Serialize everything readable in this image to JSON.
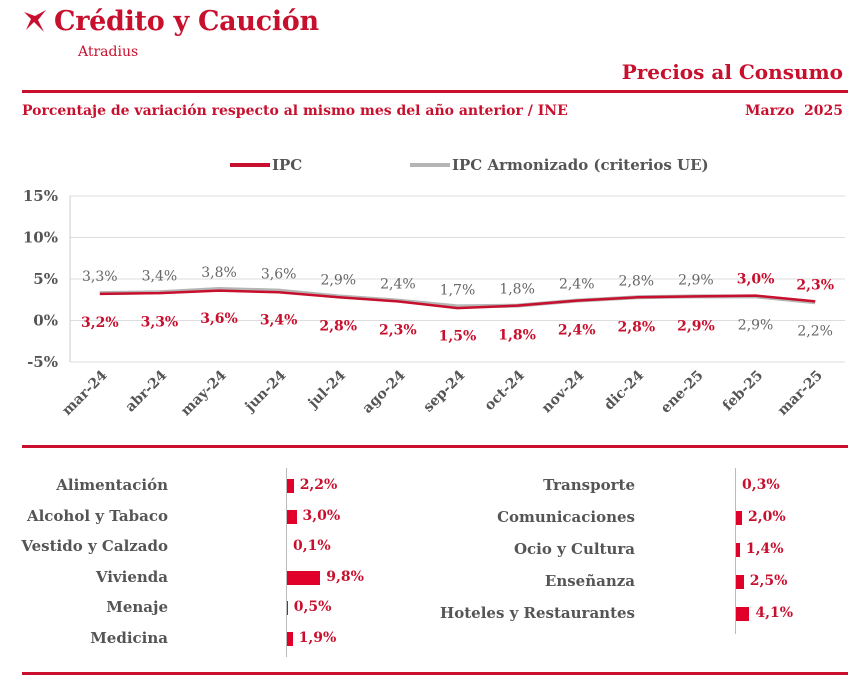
{
  "brand": {
    "name": "Crédito y Caución",
    "sub": "Atradius",
    "color": "#c8102e"
  },
  "page_title": "Precios al Consumo",
  "subtitle": "Porcentaje de variación respecto al mismo mes del año anterior / INE",
  "period": "Marzo  2025",
  "chart_data": {
    "type": "line",
    "title": "",
    "xlabel": "",
    "ylabel": "",
    "ylim": [
      -5,
      15
    ],
    "yticks": [
      "15%",
      "10%",
      "5%",
      "0%",
      "-5%"
    ],
    "ytick_values": [
      15,
      10,
      5,
      0,
      -5
    ],
    "categories": [
      "mar-24",
      "abr-24",
      "may-24",
      "jun-24",
      "jul-24",
      "ago-24",
      "sep-24",
      "oct-24",
      "nov-24",
      "dic-24",
      "ene-25",
      "feb-25",
      "mar-25"
    ],
    "series": [
      {
        "name": "IPC",
        "color": "#c8102e",
        "values": [
          3.2,
          3.3,
          3.6,
          3.4,
          2.8,
          2.3,
          1.5,
          1.8,
          2.4,
          2.8,
          2.9,
          3.0,
          2.3
        ],
        "labels": [
          "3,2%",
          "3,3%",
          "3,6%",
          "3,4%",
          "2,8%",
          "2,3%",
          "1,5%",
          "1,8%",
          "2,4%",
          "2,8%",
          "2,9%",
          "3,0%",
          "2,3%"
        ]
      },
      {
        "name": "IPC Armonizado (criterios UE)",
        "color": "#b5b5b5",
        "values": [
          3.3,
          3.4,
          3.8,
          3.6,
          2.9,
          2.4,
          1.7,
          1.8,
          2.4,
          2.8,
          2.9,
          2.9,
          2.2
        ],
        "labels": [
          "3,3%",
          "3,4%",
          "3,8%",
          "3,6%",
          "2,9%",
          "2,4%",
          "1,7%",
          "1,8%",
          "2,4%",
          "2,8%",
          "2,9%",
          "2,9%",
          "2,2%"
        ]
      }
    ],
    "legend": "top"
  },
  "categories_left": [
    {
      "name": "Alimentación",
      "value": 2.2,
      "label": "2,2%"
    },
    {
      "name": "Alcohol y Tabaco",
      "value": 3.0,
      "label": "3,0%"
    },
    {
      "name": "Vestido y Calzado",
      "value": 0.1,
      "label": "0,1%"
    },
    {
      "name": "Vivienda",
      "value": 9.8,
      "label": "9,8%"
    },
    {
      "name": "Menaje ",
      "value": 0.5,
      "label": "0,5%"
    },
    {
      "name": "Medicina",
      "value": 1.9,
      "label": "1,9%"
    }
  ],
  "categories_right": [
    {
      "name": "Transporte",
      "value": 0.3,
      "label": "0,3%"
    },
    {
      "name": "Comunicaciones",
      "value": 2.0,
      "label": "2,0%"
    },
    {
      "name": "Ocio y Cultura",
      "value": 1.4,
      "label": "1,4%"
    },
    {
      "name": "Enseñanza",
      "value": 2.5,
      "label": "2,5%"
    },
    {
      "name": "Hoteles y Restaurantes",
      "value": 4.1,
      "label": "4,1%"
    }
  ]
}
